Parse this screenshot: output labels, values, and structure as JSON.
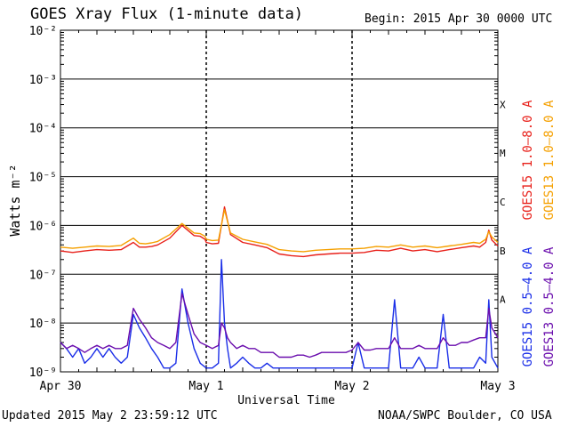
{
  "header": {
    "title": "GOES Xray Flux (1-minute data)",
    "begin": "Begin:  2015 Apr 30 0000 UTC"
  },
  "footer": {
    "updated": "Updated 2015 May  2 23:59:12 UTC",
    "credit": "NOAA/SWPC Boulder, CO USA"
  },
  "colors": {
    "goes15_long": "#e8201a",
    "goes13_long": "#f5a000",
    "goes15_short": "#1a2ee8",
    "goes13_short": "#6a0dad"
  },
  "chart_data": {
    "type": "line",
    "title": "GOES Xray Flux (1-minute data)",
    "xlabel": "Universal Time",
    "ylabel": "Watts m⁻²",
    "y_scale": "log",
    "ylim": [
      1e-09,
      0.01
    ],
    "xlim": [
      "2015-04-30 00:00",
      "2015-05-03 00:00"
    ],
    "x_ticks": [
      "Apr 30",
      "May 1",
      "May 2",
      "May 3"
    ],
    "y_ticks": [
      "10⁻⁹",
      "10⁻⁸",
      "10⁻⁷",
      "10⁻⁶",
      "10⁻⁵",
      "10⁻⁴",
      "10⁻³",
      "10⁻²"
    ],
    "flare_classes": [
      {
        "label": "A",
        "value": 1e-08
      },
      {
        "label": "B",
        "value": 1e-07
      },
      {
        "label": "C",
        "value": 1e-06
      },
      {
        "label": "M",
        "value": 1e-05
      },
      {
        "label": "X",
        "value": 0.0001
      }
    ],
    "grid": true,
    "legend_placement": "right, vertical",
    "series": [
      {
        "name": "GOES15 1.0–8.0 A",
        "color": "#e8201a",
        "x_hours": [
          0,
          2,
          4,
          6,
          8,
          10,
          12,
          13,
          14,
          15,
          16,
          18,
          20,
          22,
          23,
          23.8,
          24,
          25,
          26,
          27,
          28,
          30,
          32,
          34,
          36,
          38,
          40,
          42,
          44,
          46,
          48,
          50,
          52,
          54,
          56,
          58,
          60,
          62,
          64,
          66,
          68,
          69,
          70,
          70.5,
          71,
          72
        ],
        "y": [
          3e-07,
          2.8e-07,
          3e-07,
          3.2e-07,
          3.1e-07,
          3.2e-07,
          4.5e-07,
          3.6e-07,
          3.6e-07,
          3.7e-07,
          4e-07,
          5.5e-07,
          1e-06,
          6.2e-07,
          6e-07,
          5.2e-07,
          4.5e-07,
          4.2e-07,
          4.3e-07,
          2.4e-06,
          6.5e-07,
          4.5e-07,
          4e-07,
          3.5e-07,
          2.6e-07,
          2.4e-07,
          2.3e-07,
          2.5e-07,
          2.6e-07,
          2.7e-07,
          2.7e-07,
          2.8e-07,
          3.1e-07,
          3e-07,
          3.4e-07,
          3e-07,
          3.2e-07,
          2.9e-07,
          3.2e-07,
          3.5e-07,
          3.8e-07,
          3.6e-07,
          4.5e-07,
          8e-07,
          5e-07,
          3.8e-07
        ]
      },
      {
        "name": "GOES13 1.0–8.0 A",
        "color": "#f5a000",
        "x_hours": [
          0,
          2,
          4,
          6,
          8,
          10,
          12,
          13,
          14,
          15,
          16,
          18,
          20,
          22,
          23,
          23.8,
          24,
          25,
          26,
          27,
          28,
          30,
          32,
          34,
          36,
          38,
          40,
          42,
          44,
          46,
          48,
          50,
          52,
          54,
          56,
          58,
          60,
          62,
          64,
          66,
          68,
          69,
          70,
          70.5,
          71,
          72
        ],
        "y": [
          3.6e-07,
          3.4e-07,
          3.6e-07,
          3.8e-07,
          3.7e-07,
          3.9e-07,
          5.5e-07,
          4.3e-07,
          4.2e-07,
          4.4e-07,
          4.7e-07,
          6.5e-07,
          1.1e-06,
          7e-07,
          6.8e-07,
          6e-07,
          5.2e-07,
          4.9e-07,
          5e-07,
          2.1e-06,
          7e-07,
          5.2e-07,
          4.6e-07,
          4.1e-07,
          3.2e-07,
          3e-07,
          2.9e-07,
          3.1e-07,
          3.2e-07,
          3.3e-07,
          3.3e-07,
          3.4e-07,
          3.7e-07,
          3.6e-07,
          4e-07,
          3.6e-07,
          3.8e-07,
          3.5e-07,
          3.8e-07,
          4.1e-07,
          4.5e-07,
          4.3e-07,
          5.2e-07,
          7.5e-07,
          5.8e-07,
          4.5e-07
        ]
      },
      {
        "name": "GOES15 0.5–4.0 A",
        "color": "#1a2ee8",
        "x_hours": [
          0,
          1,
          2,
          3,
          4,
          5,
          6,
          7,
          8,
          9,
          10,
          11,
          12,
          13,
          14,
          15,
          16,
          17,
          18,
          19,
          20,
          21,
          22,
          23,
          24,
          25,
          26,
          26.5,
          27,
          27.5,
          28,
          29,
          30,
          31,
          32,
          33,
          34,
          35,
          36,
          37,
          38,
          39,
          40,
          41,
          42,
          43,
          44,
          45,
          46,
          47,
          48,
          49,
          50,
          51,
          52,
          53,
          54,
          55,
          56,
          57,
          58,
          59,
          60,
          61,
          62,
          63,
          64,
          65,
          66,
          67,
          68,
          69,
          70,
          70.5,
          71,
          72
        ],
        "y": [
          4e-09,
          3e-09,
          2e-09,
          3e-09,
          1.5e-09,
          2e-09,
          3e-09,
          2e-09,
          3e-09,
          2e-09,
          1.5e-09,
          2e-09,
          1.5e-08,
          8e-09,
          5e-09,
          3e-09,
          2e-09,
          1.2e-09,
          1.2e-09,
          1.5e-09,
          5e-08,
          1e-08,
          3e-09,
          1.5e-09,
          1.2e-09,
          1.2e-09,
          1.5e-09,
          2e-07,
          1e-08,
          3e-09,
          1.2e-09,
          1.5e-09,
          2e-09,
          1.5e-09,
          1.2e-09,
          1.2e-09,
          1.5e-09,
          1.2e-09,
          1.2e-09,
          1.2e-09,
          1.2e-09,
          1.2e-09,
          1.2e-09,
          1.2e-09,
          1.2e-09,
          1.2e-09,
          1.2e-09,
          1.2e-09,
          1.2e-09,
          1.2e-09,
          1.2e-09,
          4e-09,
          1.2e-09,
          1.2e-09,
          1.2e-09,
          1.2e-09,
          1.2e-09,
          3e-08,
          1.2e-09,
          1.2e-09,
          1.2e-09,
          2e-09,
          1.2e-09,
          1.2e-09,
          1.2e-09,
          1.5e-08,
          1.2e-09,
          1.2e-09,
          1.2e-09,
          1.2e-09,
          1.2e-09,
          2e-09,
          1.5e-09,
          3e-08,
          2e-09,
          1.2e-09
        ]
      },
      {
        "name": "GOES13 0.5–4.0 A",
        "color": "#6a0dad",
        "x_hours": [
          0,
          1,
          2,
          3,
          4,
          5,
          6,
          7,
          8,
          9,
          10,
          11,
          12,
          13,
          14,
          15,
          16,
          17,
          18,
          19,
          20,
          21,
          22,
          23,
          24,
          25,
          26,
          26.5,
          27,
          27.5,
          28,
          29,
          30,
          31,
          32,
          33,
          34,
          35,
          36,
          37,
          38,
          39,
          40,
          41,
          42,
          43,
          44,
          45,
          46,
          47,
          48,
          49,
          50,
          51,
          52,
          53,
          54,
          55,
          56,
          57,
          58,
          59,
          60,
          61,
          62,
          63,
          64,
          65,
          66,
          67,
          68,
          69,
          70,
          70.5,
          71,
          72
        ],
        "y": [
          4e-09,
          3e-09,
          3.5e-09,
          3e-09,
          2.5e-09,
          3e-09,
          3.5e-09,
          3e-09,
          3.5e-09,
          3e-09,
          3e-09,
          3.5e-09,
          2e-08,
          1.2e-08,
          8e-09,
          5e-09,
          4e-09,
          3.5e-09,
          3e-09,
          4e-09,
          4e-08,
          1.5e-08,
          6e-09,
          4e-09,
          3.5e-09,
          3e-09,
          3.5e-09,
          1e-08,
          8e-09,
          5e-09,
          4e-09,
          3e-09,
          3.5e-09,
          3e-09,
          3e-09,
          2.5e-09,
          2.5e-09,
          2.5e-09,
          2e-09,
          2e-09,
          2e-09,
          2.2e-09,
          2.2e-09,
          2e-09,
          2.2e-09,
          2.5e-09,
          2.5e-09,
          2.5e-09,
          2.5e-09,
          2.5e-09,
          2.8e-09,
          4e-09,
          2.8e-09,
          2.8e-09,
          3e-09,
          3e-09,
          3e-09,
          5e-09,
          3e-09,
          3e-09,
          3e-09,
          3.5e-09,
          3e-09,
          3e-09,
          3e-09,
          5e-09,
          3.5e-09,
          3.5e-09,
          4e-09,
          4e-09,
          4.5e-09,
          5e-09,
          5e-09,
          2e-08,
          8e-09,
          5e-09
        ]
      }
    ]
  }
}
